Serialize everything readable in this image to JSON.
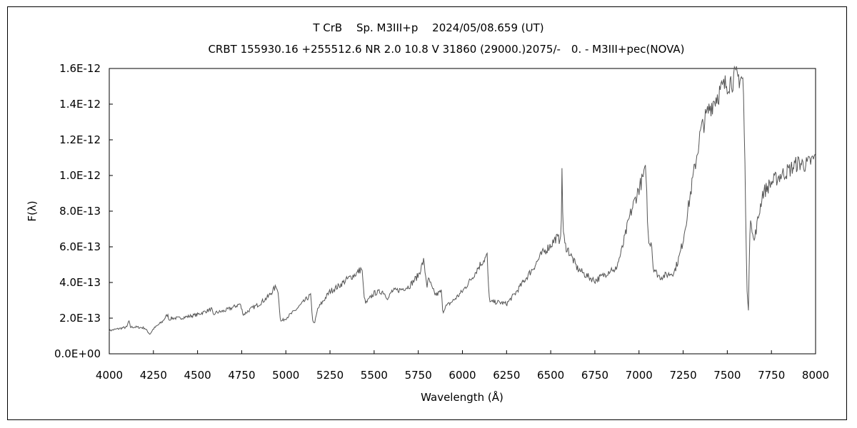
{
  "chart_data": {
    "type": "line",
    "title": "T CrB　 Sp. M3III+p　 2024/05/08.659 (UT)",
    "subtitle": "CRBT 155930.16 +255512.6 NR 2.0 10.8 V 31860 (29000.)2075/-　0. - M3III+pec(NOVA)",
    "xlabel": "Wavelength (Å)",
    "ylabel": "F(λ)",
    "xlim": [
      4000,
      8000
    ],
    "ylim": [
      0,
      1.6e-12
    ],
    "x_ticks": [
      "4000",
      "4250",
      "4500",
      "4750",
      "5000",
      "5250",
      "5500",
      "5750",
      "6000",
      "6250",
      "6500",
      "6750",
      "7000",
      "7250",
      "7500",
      "7750",
      "8000"
    ],
    "y_ticks": [
      "0.0E+00",
      "2.0E-13",
      "4.0E-13",
      "6.0E-13",
      "8.0E-13",
      "1.0E-12",
      "1.2E-12",
      "1.4E-12",
      "1.6E-12"
    ],
    "grid": false,
    "legend": "none",
    "line_color": "#555555",
    "series": [
      {
        "x": [
          4000,
          4050,
          4100,
          4110,
          4120,
          4150,
          4200,
          4230,
          4250,
          4300,
          4330,
          4340,
          4350,
          4400,
          4450,
          4500,
          4550,
          4580,
          4590,
          4600,
          4650,
          4700,
          4740,
          4760,
          4800,
          4850,
          4900,
          4930,
          4950,
          4960,
          4970,
          5000,
          5050,
          5100,
          5140,
          5150,
          5160,
          5170,
          5180,
          5200,
          5250,
          5300,
          5350,
          5400,
          5430,
          5440,
          5450,
          5500,
          5550,
          5580,
          5600,
          5650,
          5700,
          5750,
          5780,
          5800,
          5810,
          5830,
          5850,
          5880,
          5890,
          5900,
          5950,
          6000,
          6050,
          6100,
          6140,
          6150,
          6160,
          6200,
          6250,
          6300,
          6350,
          6400,
          6450,
          6500,
          6530,
          6550,
          6560,
          6563,
          6570,
          6580,
          6600,
          6650,
          6700,
          6750,
          6800,
          6850,
          6860,
          6900,
          6950,
          7000,
          7020,
          7040,
          7050,
          7060,
          7070,
          7080,
          7100,
          7120,
          7150,
          7180,
          7200,
          7230,
          7250,
          7300,
          7350,
          7400,
          7450,
          7500,
          7550,
          7580,
          7590,
          7600,
          7610,
          7620,
          7630,
          7650,
          7700,
          7750,
          7800,
          7850,
          7900,
          7950,
          8000
        ],
        "y": [
          1.3e-13,
          1.4e-13,
          1.5e-13,
          1.85e-13,
          1.5e-13,
          1.5e-13,
          1.45e-13,
          1.1e-13,
          1.4e-13,
          1.8e-13,
          2.2e-13,
          1.9e-13,
          2e-13,
          2e-13,
          2.1e-13,
          2.2e-13,
          2.4e-13,
          2.5e-13,
          2.1e-13,
          2.3e-13,
          2.4e-13,
          2.6e-13,
          2.8e-13,
          2.2e-13,
          2.5e-13,
          2.8e-13,
          3.2e-13,
          3.6e-13,
          3.8e-13,
          3.1e-13,
          1.8e-13,
          2e-13,
          2.4e-13,
          2.9e-13,
          3.3e-13,
          2e-13,
          1.7e-13,
          2e-13,
          2.5e-13,
          2.8e-13,
          3.5e-13,
          3.8e-13,
          4.2e-13,
          4.5e-13,
          4.8e-13,
          3.6e-13,
          2.8e-13,
          3.4e-13,
          3.5e-13,
          3.1e-13,
          3.5e-13,
          3.6e-13,
          3.8e-13,
          4.4e-13,
          5.2e-13,
          3.8e-13,
          4.2e-13,
          3.6e-13,
          3.3e-13,
          3.5e-13,
          2.3e-13,
          2.6e-13,
          3e-13,
          3.5e-13,
          4.2e-13,
          5e-13,
          5.5e-13,
          3.2e-13,
          2.9e-13,
          2.9e-13,
          2.8e-13,
          3.4e-13,
          4.1e-13,
          4.8e-13,
          5.6e-13,
          6.1e-13,
          6.5e-13,
          6.4e-13,
          7.2e-13,
          1.1e-12,
          7e-13,
          6.1e-13,
          5.8e-13,
          4.8e-13,
          4.4e-13,
          4.1e-13,
          4.4e-13,
          4.8e-13,
          4.5e-13,
          5.7e-13,
          7.8e-13,
          9.3e-13,
          9.8e-13,
          1.03e-12,
          6.8e-13,
          6.2e-13,
          6.4e-13,
          4.9e-13,
          4.5e-13,
          4.3e-13,
          4.4e-13,
          4.5e-13,
          4.6e-13,
          5.5e-13,
          6.4e-13,
          9.5e-13,
          1.25e-12,
          1.38e-12,
          1.46e-12,
          1.52e-12,
          1.55e-12,
          1.55e-12,
          1.53e-12,
          1.05e-12,
          4e-13,
          2.4e-13,
          8e-13,
          6.2e-13,
          9e-13,
          9.6e-13,
          1e-12,
          1.03e-12,
          1.07e-12,
          1.06e-12,
          1.1e-12
        ]
      }
    ]
  }
}
